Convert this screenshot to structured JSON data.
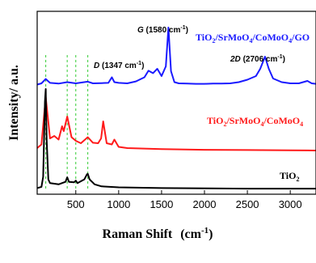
{
  "chart_data": {
    "type": "line",
    "xlabel": "Raman Shift",
    "xlabel_unit": "(cm",
    "xlabel_unit_sup": "-1",
    "xlabel_unit_end": ")",
    "ylabel": "Intensity/ a.u.",
    "xlim": [
      50,
      3300
    ],
    "x_ticks": [
      500,
      1000,
      1500,
      2000,
      2500,
      3000
    ],
    "x_tick_labels": [
      "500",
      "1000",
      "1500",
      "2000",
      "2500",
      "3000"
    ],
    "guide_lines_x": [
      150,
      400,
      500,
      640
    ],
    "series": [
      {
        "name": "TiO2/SrMoO4/CoMoO4/GO",
        "color": "#1a1aff",
        "x": [
          50,
          100,
          150,
          200,
          300,
          400,
          500,
          640,
          700,
          800,
          880,
          920,
          950,
          1000,
          1100,
          1200,
          1300,
          1347,
          1400,
          1450,
          1500,
          1550,
          1580,
          1610,
          1650,
          1700,
          1800,
          1900,
          2000,
          2100,
          2200,
          2300,
          2400,
          2500,
          2600,
          2650,
          2706,
          2750,
          2800,
          2900,
          3000,
          3100,
          3200,
          3250,
          3300
        ],
        "y": [
          0.5,
          1.0,
          2.8,
          1.2,
          0.9,
          1.5,
          1.0,
          1.7,
          1.0,
          1.1,
          1.2,
          3.5,
          1.5,
          1.2,
          1.0,
          1.8,
          3.5,
          6.2,
          5.2,
          7.0,
          4.0,
          8.0,
          24.0,
          6.0,
          1.5,
          1.0,
          0.9,
          0.8,
          0.8,
          0.9,
          0.9,
          1.0,
          1.5,
          2.5,
          4.0,
          7.0,
          12.0,
          7.0,
          3.0,
          1.5,
          1.0,
          1.0,
          2.0,
          1.0,
          0.8
        ]
      },
      {
        "name": "TiO2/SrMoO4/CoMoO4",
        "color": "#ff1a1a",
        "x": [
          50,
          100,
          150,
          200,
          250,
          300,
          340,
          360,
          400,
          450,
          500,
          560,
          640,
          700,
          760,
          795,
          820,
          860,
          920,
          950,
          1000,
          1100,
          1500,
          2000,
          2500,
          3000,
          3300
        ],
        "y": [
          1.0,
          2.5,
          22.0,
          5.0,
          6.0,
          4.5,
          10.0,
          8.0,
          14.0,
          5.5,
          4.0,
          3.0,
          5.5,
          3.2,
          3.0,
          5.0,
          12.0,
          3.0,
          2.5,
          4.5,
          1.5,
          1.0,
          0.6,
          0.3,
          0.2,
          0.1,
          0.0
        ],
        "label_parts": [
          "TiO",
          "2",
          "/SrMoO",
          "4",
          "/CoMoO",
          "4"
        ]
      },
      {
        "name": "TiO2",
        "color": "#000000",
        "x": [
          50,
          100,
          120,
          140,
          150,
          160,
          180,
          200,
          300,
          380,
          400,
          420,
          480,
          500,
          520,
          600,
          630,
          640,
          660,
          720,
          800,
          1000,
          1500,
          2000,
          2500,
          3000,
          3300
        ],
        "y": [
          0.5,
          1.0,
          5.0,
          35.0,
          40.0,
          20.0,
          4.0,
          2.5,
          2.0,
          3.0,
          4.8,
          3.0,
          2.8,
          3.5,
          2.5,
          4.0,
          6.0,
          6.2,
          4.0,
          2.0,
          1.2,
          0.8,
          0.5,
          0.4,
          0.3,
          0.3,
          0.3
        ],
        "label_parts": [
          "TiO",
          "2"
        ]
      }
    ],
    "blue_label_parts": [
      "TiO",
      "2",
      "/SrMoO",
      "4",
      "/CoMoO",
      "4",
      "/GO"
    ],
    "annotations": [
      {
        "key": "G",
        "name": "G",
        "value": " (1580 cm",
        "sup": "-1",
        "end": ")"
      },
      {
        "key": "D",
        "name": "D",
        "value": " (1347 cm",
        "sup": "-1",
        "end": ")"
      },
      {
        "key": "2D",
        "name": "2D",
        "value": " (2706 cm",
        "sup": "-1",
        "end": ")"
      }
    ]
  }
}
